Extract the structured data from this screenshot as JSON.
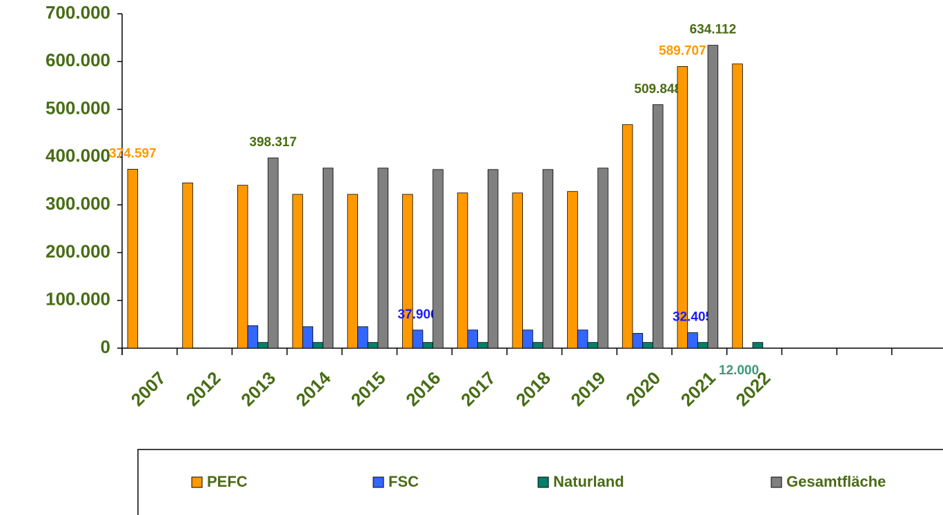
{
  "chart_data": {
    "type": "bar",
    "categories": [
      "2007",
      "2012",
      "2013",
      "2014",
      "2015",
      "2016",
      "2017",
      "2018",
      "2019",
      "2020",
      "2021",
      "2022",
      null,
      null,
      null
    ],
    "series": [
      {
        "name": "PEFC",
        "color": "#ff9900",
        "label_color": "#ff9900",
        "values": [
          374597,
          346000,
          341000,
          322000,
          322000,
          322000,
          325000,
          325000,
          328000,
          468000,
          589707,
          595000,
          null,
          null,
          null
        ],
        "value_labels": [
          "374.597",
          null,
          null,
          null,
          null,
          null,
          null,
          null,
          null,
          null,
          "589.707",
          null,
          null,
          null,
          null
        ]
      },
      {
        "name": "FSC",
        "color": "#3366ff",
        "label_color": "#1a1aff",
        "values": [
          null,
          null,
          47000,
          45000,
          45000,
          37906,
          38000,
          38000,
          38000,
          31000,
          32405,
          null,
          null,
          null,
          null
        ],
        "value_labels": [
          null,
          null,
          null,
          null,
          null,
          "37.906",
          null,
          null,
          null,
          null,
          "32.405",
          null,
          null,
          null,
          null
        ]
      },
      {
        "name": "Naturland",
        "color": "#008068",
        "label_color": "#3a9a7a",
        "values": [
          null,
          null,
          12000,
          12000,
          12000,
          12000,
          12000,
          12000,
          12000,
          12000,
          12000,
          12000,
          null,
          null,
          null
        ],
        "value_labels": [
          null,
          null,
          null,
          null,
          null,
          null,
          null,
          null,
          null,
          null,
          null,
          "12.000",
          null,
          null,
          null
        ]
      },
      {
        "name": "Gesamtfläche",
        "color": "#808080",
        "label_color": "#4a6b14",
        "values": [
          null,
          null,
          398317,
          377000,
          377000,
          374000,
          374000,
          374000,
          377000,
          509848,
          634112,
          null,
          null,
          null,
          null
        ],
        "value_labels": [
          null,
          null,
          "398.317",
          null,
          null,
          null,
          null,
          null,
          null,
          "509.848",
          "634.112",
          null,
          null,
          null,
          null
        ]
      }
    ],
    "ylim": [
      0,
      700000
    ],
    "yticks": [
      {
        "value": 0,
        "label": "0"
      },
      {
        "value": 100000,
        "label": "100.000"
      },
      {
        "value": 200000,
        "label": "200.000"
      },
      {
        "value": 300000,
        "label": "300.000"
      },
      {
        "value": 400000,
        "label": "400.000"
      },
      {
        "value": 500000,
        "label": "500.000"
      },
      {
        "value": 600000,
        "label": "600.000"
      },
      {
        "value": 700000,
        "label": "700.000"
      }
    ],
    "legend": "bottom"
  }
}
